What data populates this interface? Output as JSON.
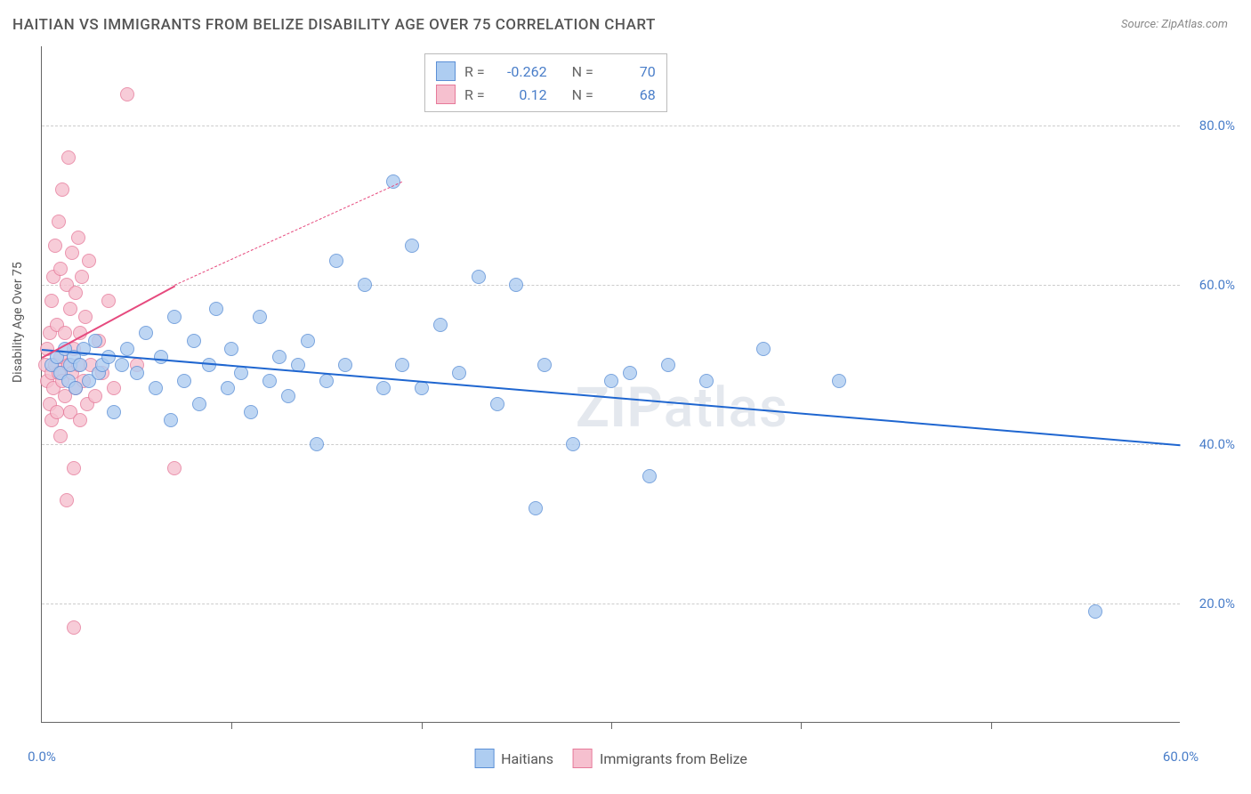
{
  "title": "HAITIAN VS IMMIGRANTS FROM BELIZE DISABILITY AGE OVER 75 CORRELATION CHART",
  "source": "Source: ZipAtlas.com",
  "ylabel": "Disability Age Over 75",
  "watermark_a": "ZIP",
  "watermark_b": "atlas",
  "chart": {
    "type": "scatter",
    "background_color": "#ffffff",
    "grid_color": "#cccccc",
    "xlim": [
      0,
      60
    ],
    "ylim": [
      5,
      90
    ],
    "xtick_step": 10,
    "ytick_step": 20,
    "xticks_visible": [
      0,
      60
    ],
    "yticks_visible": [
      20,
      40,
      60,
      80
    ],
    "tick_fontsize": 15,
    "tick_color": "#4a7ec9",
    "label_fontsize": 14,
    "marker_radius": 8,
    "marker_opacity": 0.45,
    "series_a": {
      "name": "Haitians",
      "legend_label": "Haitians",
      "fill": "#aecdf1",
      "stroke": "#5b8fd6",
      "r": -0.262,
      "n": 70,
      "reg_color": "#1f66d0",
      "reg_width": 2.5,
      "reg_start": [
        0,
        52
      ],
      "reg_end": [
        60,
        40
      ],
      "points": [
        [
          0.5,
          50
        ],
        [
          0.8,
          51
        ],
        [
          1.0,
          49
        ],
        [
          1.2,
          52
        ],
        [
          1.4,
          48
        ],
        [
          1.5,
          50
        ],
        [
          1.7,
          51
        ],
        [
          1.8,
          47
        ],
        [
          2.0,
          50
        ],
        [
          2.2,
          52
        ],
        [
          2.5,
          48
        ],
        [
          2.8,
          53
        ],
        [
          3.0,
          49
        ],
        [
          3.2,
          50
        ],
        [
          3.5,
          51
        ],
        [
          3.8,
          44
        ],
        [
          4.2,
          50
        ],
        [
          4.5,
          52
        ],
        [
          5.0,
          49
        ],
        [
          5.5,
          54
        ],
        [
          6.0,
          47
        ],
        [
          6.3,
          51
        ],
        [
          6.8,
          43
        ],
        [
          7.0,
          56
        ],
        [
          7.5,
          48
        ],
        [
          8.0,
          53
        ],
        [
          8.3,
          45
        ],
        [
          8.8,
          50
        ],
        [
          9.2,
          57
        ],
        [
          9.8,
          47
        ],
        [
          10.0,
          52
        ],
        [
          10.5,
          49
        ],
        [
          11.0,
          44
        ],
        [
          11.5,
          56
        ],
        [
          12.0,
          48
        ],
        [
          12.5,
          51
        ],
        [
          13.0,
          46
        ],
        [
          13.5,
          50
        ],
        [
          14.0,
          53
        ],
        [
          14.5,
          40
        ],
        [
          15.0,
          48
        ],
        [
          15.5,
          63
        ],
        [
          16.0,
          50
        ],
        [
          17.0,
          60
        ],
        [
          18.0,
          47
        ],
        [
          18.5,
          73
        ],
        [
          19.0,
          50
        ],
        [
          19.5,
          65
        ],
        [
          20.0,
          47
        ],
        [
          21.0,
          55
        ],
        [
          22.0,
          49
        ],
        [
          23.0,
          61
        ],
        [
          24.0,
          45
        ],
        [
          25.0,
          60
        ],
        [
          26.0,
          32
        ],
        [
          26.5,
          50
        ],
        [
          28.0,
          40
        ],
        [
          30.0,
          48
        ],
        [
          31.0,
          49
        ],
        [
          32.0,
          36
        ],
        [
          33.0,
          50
        ],
        [
          35.0,
          48
        ],
        [
          38.0,
          52
        ],
        [
          42.0,
          48
        ],
        [
          55.5,
          19
        ]
      ]
    },
    "series_b": {
      "name": "Immigrants from Belize",
      "legend_label": "Immigrants from Belize",
      "fill": "#f6c0cf",
      "stroke": "#e67a9a",
      "r": 0.12,
      "n": 68,
      "reg_color": "#e64a7e",
      "reg_width": 2.5,
      "reg_solid_end": [
        7,
        60
      ],
      "reg_dash_end": [
        19,
        73
      ],
      "reg_start": [
        0,
        51
      ],
      "points": [
        [
          0.2,
          50
        ],
        [
          0.3,
          48
        ],
        [
          0.3,
          52
        ],
        [
          0.4,
          45
        ],
        [
          0.4,
          54
        ],
        [
          0.5,
          49
        ],
        [
          0.5,
          58
        ],
        [
          0.5,
          43
        ],
        [
          0.6,
          61
        ],
        [
          0.6,
          47
        ],
        [
          0.7,
          65
        ],
        [
          0.7,
          50
        ],
        [
          0.8,
          55
        ],
        [
          0.8,
          44
        ],
        [
          0.9,
          68
        ],
        [
          0.9,
          49
        ],
        [
          1.0,
          62
        ],
        [
          1.0,
          51
        ],
        [
          1.0,
          41
        ],
        [
          1.1,
          72
        ],
        [
          1.1,
          48
        ],
        [
          1.2,
          54
        ],
        [
          1.2,
          46
        ],
        [
          1.3,
          60
        ],
        [
          1.3,
          33
        ],
        [
          1.4,
          76
        ],
        [
          1.4,
          50
        ],
        [
          1.5,
          57
        ],
        [
          1.5,
          44
        ],
        [
          1.6,
          64
        ],
        [
          1.6,
          49
        ],
        [
          1.7,
          52
        ],
        [
          1.7,
          37
        ],
        [
          1.8,
          59
        ],
        [
          1.8,
          47
        ],
        [
          1.9,
          66
        ],
        [
          1.9,
          50
        ],
        [
          2.0,
          54
        ],
        [
          2.0,
          43
        ],
        [
          2.1,
          61
        ],
        [
          2.2,
          48
        ],
        [
          2.3,
          56
        ],
        [
          2.4,
          45
        ],
        [
          2.5,
          63
        ],
        [
          2.6,
          50
        ],
        [
          2.8,
          46
        ],
        [
          3.0,
          53
        ],
        [
          3.2,
          49
        ],
        [
          3.5,
          58
        ],
        [
          3.8,
          47
        ],
        [
          4.5,
          84
        ],
        [
          5.0,
          50
        ],
        [
          7.0,
          37
        ],
        [
          1.7,
          17
        ]
      ]
    }
  },
  "stats_box": {
    "rlabel": "R =",
    "nlabel": "N ="
  },
  "legend": {
    "a": "Haitians",
    "b": "Immigrants from Belize"
  }
}
